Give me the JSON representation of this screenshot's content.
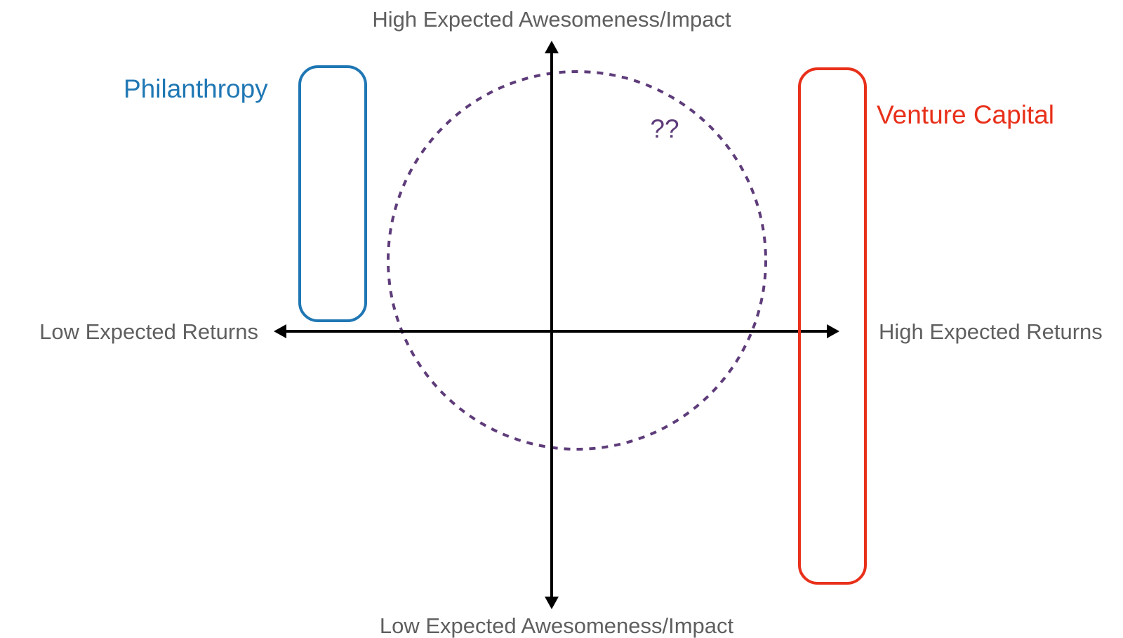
{
  "axes": {
    "top_label": "High Expected Awesomeness/Impact",
    "bottom_label": "Low Expected Awesomeness/Impact",
    "left_label": "Low Expected Returns",
    "right_label": "High Expected Returns"
  },
  "regions": {
    "philanthropy": {
      "label": "Philanthropy",
      "color": "#1f77b4"
    },
    "venture_capital": {
      "label": "Venture Capital",
      "color": "#e8301a"
    },
    "unknown": {
      "label": "??",
      "color": "#5e3c7a"
    }
  },
  "colors": {
    "axis": "#000000",
    "axis_label": "#5f5f5f"
  }
}
